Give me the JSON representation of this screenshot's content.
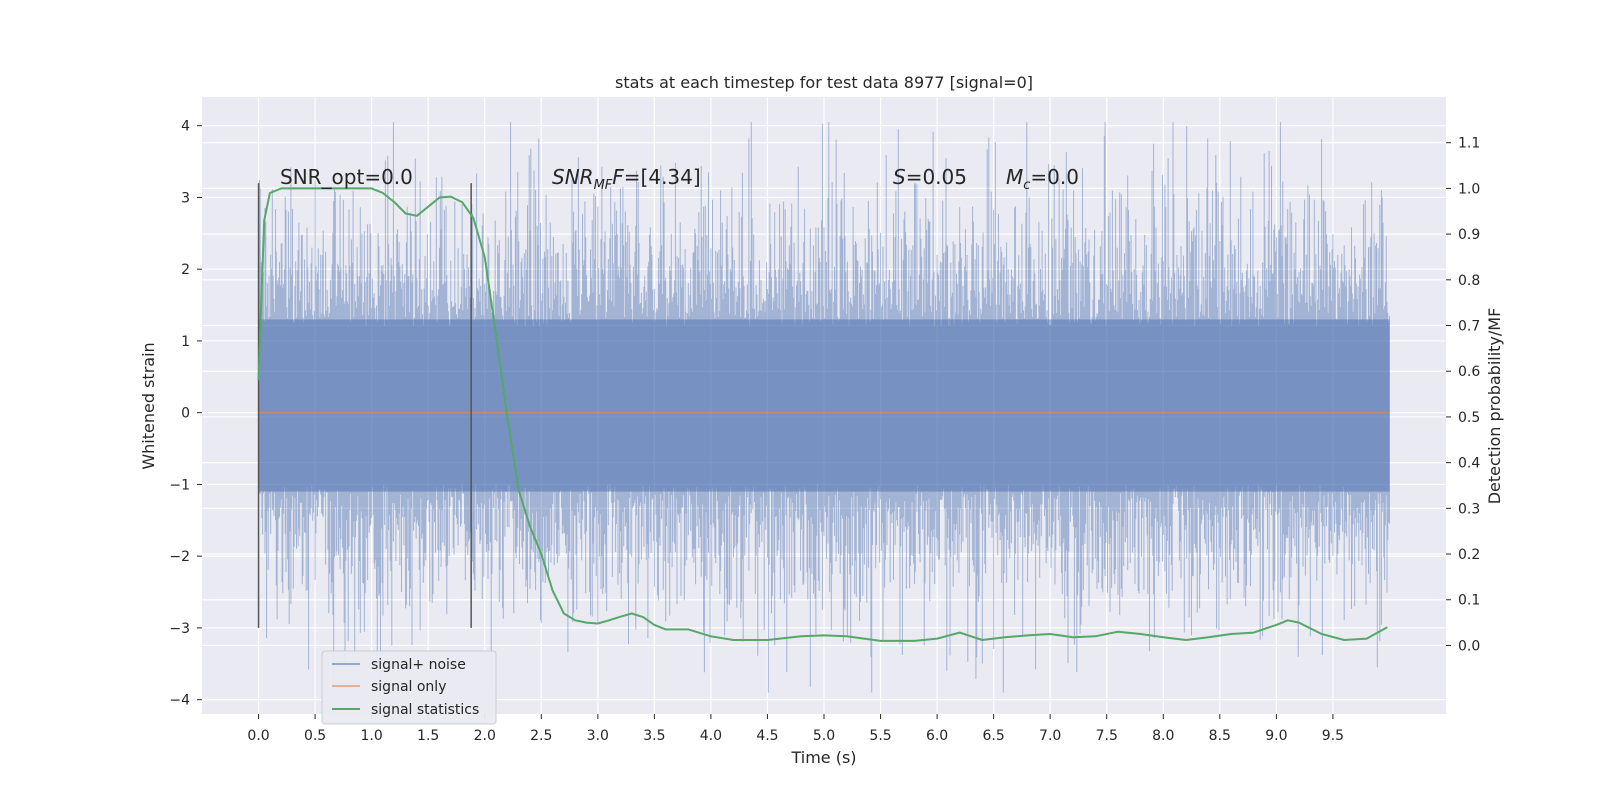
{
  "chart_data": {
    "type": "line",
    "title": "stats at each timestep for test data 8977 [signal=0]",
    "xlabel": "Time (s)",
    "ylabel_left": "Whitened strain",
    "ylabel_right": "Detection probability/MF",
    "xlim": [
      -0.5,
      10.5
    ],
    "ylim_left": [
      -4.2,
      4.4
    ],
    "ylim_right": [
      -0.15,
      1.2
    ],
    "x_ticks": [
      "0.0",
      "0.5",
      "1.0",
      "1.5",
      "2.0",
      "2.5",
      "3.0",
      "3.5",
      "4.0",
      "4.5",
      "5.0",
      "5.5",
      "6.0",
      "6.5",
      "7.0",
      "7.5",
      "8.0",
      "8.5",
      "9.0",
      "9.5"
    ],
    "y_left_ticks": [
      "−4",
      "−3",
      "−2",
      "−1",
      "0",
      "1",
      "2",
      "3",
      "4"
    ],
    "y_right_ticks": [
      "0.0",
      "0.1",
      "0.2",
      "0.3",
      "0.4",
      "0.5",
      "0.6",
      "0.7",
      "0.8",
      "0.9",
      "1.0",
      "1.1"
    ],
    "grid": true,
    "annotations": {
      "snr_opt": "SNR_opt=0.0",
      "snr_mf_main": "SNR",
      "snr_mf_sub": "MF",
      "snr_mf_value": "=[4.34]",
      "s_main": "S",
      "s_value": "=0.05",
      "mc_main": "M",
      "mc_sub": "c",
      "mc_value": "=0.0"
    },
    "vertical_markers": [
      0.0,
      1.88
    ],
    "series": [
      {
        "name": "signal+ noise",
        "color": "#4c72b0",
        "axis": "left",
        "x_range": [
          0.0,
          10.0
        ],
        "envelope": {
          "dense_band": [
            -1.1,
            1.3
          ],
          "typical_peaks": [
            -2.3,
            2.3
          ],
          "extremes": [
            -3.9,
            4.05
          ]
        }
      },
      {
        "name": "signal only",
        "color": "#dd8452",
        "axis": "left",
        "x": [
          0.0,
          10.0
        ],
        "y": [
          0.0,
          0.0
        ]
      },
      {
        "name": "signal statistics",
        "color": "#55a868",
        "axis": "right",
        "x": [
          0.0,
          0.05,
          0.1,
          0.2,
          0.3,
          0.5,
          0.7,
          0.9,
          1.0,
          1.1,
          1.2,
          1.3,
          1.4,
          1.5,
          1.6,
          1.7,
          1.8,
          1.9,
          2.0,
          2.1,
          2.2,
          2.3,
          2.4,
          2.5,
          2.6,
          2.7,
          2.8,
          2.9,
          3.0,
          3.1,
          3.2,
          3.3,
          3.4,
          3.5,
          3.6,
          3.7,
          3.8,
          4.0,
          4.2,
          4.5,
          4.8,
          5.0,
          5.2,
          5.5,
          5.8,
          6.0,
          6.2,
          6.4,
          6.6,
          6.8,
          7.0,
          7.2,
          7.4,
          7.6,
          7.8,
          8.0,
          8.2,
          8.4,
          8.6,
          8.8,
          9.0,
          9.1,
          9.2,
          9.4,
          9.6,
          9.8,
          9.98
        ],
        "y": [
          0.58,
          0.93,
          0.99,
          1.0,
          1.0,
          1.0,
          1.0,
          1.0,
          1.0,
          0.99,
          0.97,
          0.945,
          0.94,
          0.96,
          0.98,
          0.982,
          0.97,
          0.935,
          0.85,
          0.68,
          0.5,
          0.34,
          0.26,
          0.2,
          0.12,
          0.07,
          0.055,
          0.05,
          0.048,
          0.055,
          0.063,
          0.07,
          0.062,
          0.045,
          0.035,
          0.035,
          0.035,
          0.02,
          0.012,
          0.012,
          0.02,
          0.022,
          0.02,
          0.01,
          0.01,
          0.015,
          0.028,
          0.012,
          0.018,
          0.022,
          0.025,
          0.018,
          0.02,
          0.03,
          0.025,
          0.018,
          0.012,
          0.018,
          0.025,
          0.028,
          0.045,
          0.055,
          0.05,
          0.025,
          0.012,
          0.015,
          0.04
        ]
      }
    ]
  }
}
